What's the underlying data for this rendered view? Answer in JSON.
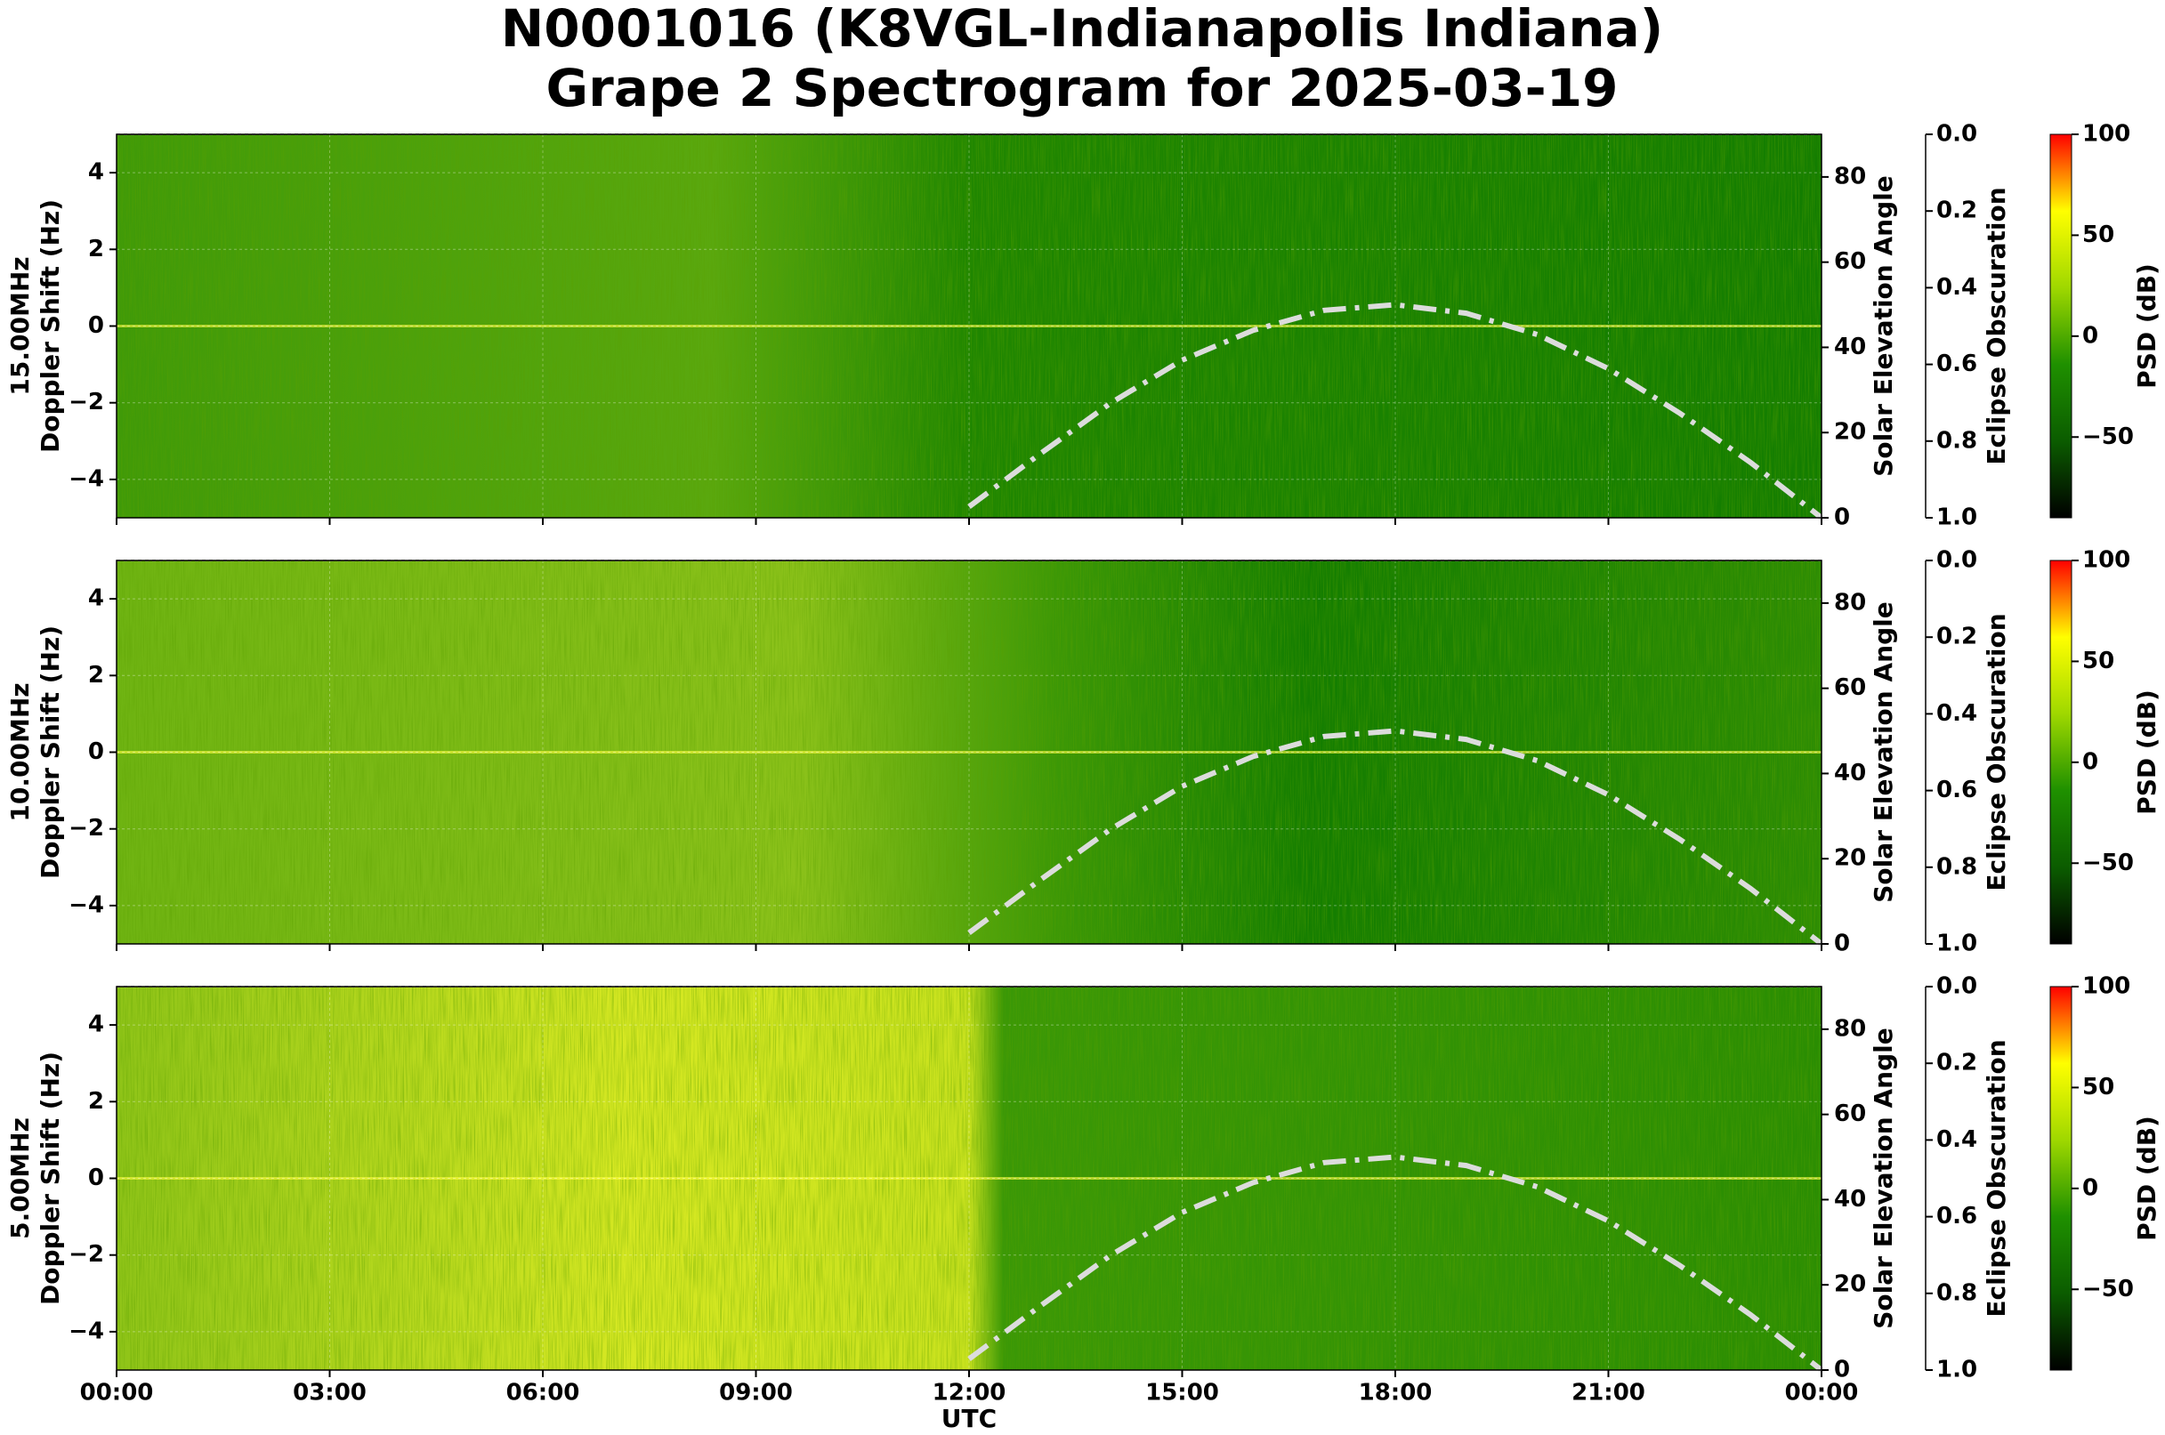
{
  "figure": {
    "title": [
      "N0001016 (K8VGL-Indianapolis Indiana)",
      "Grape 2 Spectrogram for 2025-03-19"
    ],
    "xlabel": "UTC"
  },
  "chart_data": [
    {
      "type": "spectrogram",
      "ylabel": [
        "15.00MHz",
        "Doppler Shift (Hz)"
      ],
      "xlim": [
        0,
        24
      ],
      "xticks": [
        0,
        3,
        6,
        9,
        12,
        15,
        18,
        21,
        24
      ],
      "ylim": [
        -5,
        5
      ],
      "yticks": [
        {
          "value": -4,
          "label": "−4"
        },
        {
          "value": -2,
          "label": "−2"
        },
        0,
        2,
        4
      ],
      "y2label": "Solar Elevation Angle",
      "y2lim": [
        0,
        90
      ],
      "y2ticks": [
        0,
        20,
        40,
        60,
        80
      ],
      "y3label": "Eclipse Obscuration",
      "y3lim": [
        1,
        0
      ],
      "y3ticks": [
        {
          "value": 0,
          "label": "0.0"
        },
        {
          "value": 0.2,
          "label": "0.2"
        },
        {
          "value": 0.4,
          "label": "0.4"
        },
        {
          "value": 0.6,
          "label": "0.6"
        },
        {
          "value": 0.8,
          "label": "0.8"
        },
        {
          "value": 1,
          "label": "1.0"
        }
      ],
      "series": [
        {
          "axis": "y2",
          "color": "#dcdcdc",
          "x": [
            12,
            13,
            14,
            15,
            16,
            17,
            18,
            19,
            20,
            21,
            22,
            23,
            24
          ],
          "values": [
            2.6,
            15,
            27,
            37,
            44,
            48.7,
            50,
            48,
            43,
            35,
            24.6,
            13,
            0
          ]
        },
        {
          "axis": "y3",
          "color": "#aaaaaa",
          "x": [
            0,
            24
          ],
          "values": [
            0,
            0
          ]
        }
      ],
      "colorbar": {
        "label": "PSD (dB)",
        "lim": [
          -90,
          100
        ],
        "ticks": [
          {
            "value": -50,
            "label": "−50"
          },
          0,
          50,
          100
        ],
        "colors": [
          "#000000",
          "#0b5c00",
          "#1f9000",
          "#9fd800",
          "#ffff00",
          "#ff0000"
        ]
      }
    },
    {
      "type": "spectrogram",
      "ylabel": [
        "10.00MHz",
        "Doppler Shift (Hz)"
      ],
      "xlim": [
        0,
        24
      ],
      "xticks": [
        0,
        3,
        6,
        9,
        12,
        15,
        18,
        21,
        24
      ],
      "ylim": [
        -5,
        5
      ],
      "yticks": [
        {
          "value": -4,
          "label": "−4"
        },
        {
          "value": -2,
          "label": "−2"
        },
        0,
        2,
        4
      ],
      "y2label": "Solar Elevation Angle",
      "y2lim": [
        0,
        90
      ],
      "y2ticks": [
        0,
        20,
        40,
        60,
        80
      ],
      "y3label": "Eclipse Obscuration",
      "y3lim": [
        1,
        0
      ],
      "y3ticks": [
        {
          "value": 0,
          "label": "0.0"
        },
        {
          "value": 0.2,
          "label": "0.2"
        },
        {
          "value": 0.4,
          "label": "0.4"
        },
        {
          "value": 0.6,
          "label": "0.6"
        },
        {
          "value": 0.8,
          "label": "0.8"
        },
        {
          "value": 1,
          "label": "1.0"
        }
      ],
      "series": [
        {
          "axis": "y2",
          "color": "#dcdcdc",
          "x": [
            12,
            13,
            14,
            15,
            16,
            17,
            18,
            19,
            20,
            21,
            22,
            23,
            24
          ],
          "values": [
            2.6,
            15,
            27,
            37,
            44,
            48.7,
            50,
            48,
            43,
            35,
            24.6,
            13,
            0
          ]
        },
        {
          "axis": "y3",
          "color": "#aaaaaa",
          "x": [
            0,
            24
          ],
          "values": [
            0,
            0
          ]
        }
      ],
      "colorbar": {
        "label": "PSD (dB)",
        "lim": [
          -90,
          100
        ],
        "ticks": [
          {
            "value": -50,
            "label": "−50"
          },
          0,
          50,
          100
        ],
        "colors": [
          "#000000",
          "#0b5c00",
          "#1f9000",
          "#9fd800",
          "#ffff00",
          "#ff0000"
        ]
      }
    },
    {
      "type": "spectrogram",
      "ylabel": [
        "5.00MHz",
        "Doppler Shift (Hz)"
      ],
      "xlim": [
        0,
        24
      ],
      "xticks": [
        {
          "value": 0,
          "label": "00:00"
        },
        {
          "value": 3,
          "label": "03:00"
        },
        {
          "value": 6,
          "label": "06:00"
        },
        {
          "value": 9,
          "label": "09:00"
        },
        {
          "value": 12,
          "label": "12:00"
        },
        {
          "value": 15,
          "label": "15:00"
        },
        {
          "value": 18,
          "label": "18:00"
        },
        {
          "value": 21,
          "label": "21:00"
        },
        {
          "value": 24,
          "label": "00:00"
        }
      ],
      "ylim": [
        -5,
        5
      ],
      "yticks": [
        {
          "value": -4,
          "label": "−4"
        },
        {
          "value": -2,
          "label": "−2"
        },
        0,
        2,
        4
      ],
      "y2label": "Solar Elevation Angle",
      "y2lim": [
        0,
        90
      ],
      "y2ticks": [
        0,
        20,
        40,
        60,
        80
      ],
      "y3label": "Eclipse Obscuration",
      "y3lim": [
        1,
        0
      ],
      "y3ticks": [
        {
          "value": 0,
          "label": "0.0"
        },
        {
          "value": 0.2,
          "label": "0.2"
        },
        {
          "value": 0.4,
          "label": "0.4"
        },
        {
          "value": 0.6,
          "label": "0.6"
        },
        {
          "value": 0.8,
          "label": "0.8"
        },
        {
          "value": 1,
          "label": "1.0"
        }
      ],
      "series": [
        {
          "axis": "y2",
          "color": "#dcdcdc",
          "x": [
            12,
            13,
            14,
            15,
            16,
            17,
            18,
            19,
            20,
            21,
            22,
            23,
            24
          ],
          "values": [
            2.6,
            15,
            27,
            37,
            44,
            48.7,
            50,
            48,
            43,
            35,
            24.6,
            13,
            0
          ]
        },
        {
          "axis": "y3",
          "color": "#aaaaaa",
          "x": [
            0,
            24
          ],
          "values": [
            0,
            0
          ]
        }
      ],
      "colorbar": {
        "label": "PSD (dB)",
        "lim": [
          -90,
          100
        ],
        "ticks": [
          {
            "value": -50,
            "label": "−50"
          },
          0,
          50,
          100
        ],
        "colors": [
          "#000000",
          "#0b5c00",
          "#1f9000",
          "#9fd800",
          "#ffff00",
          "#ff0000"
        ]
      }
    }
  ]
}
